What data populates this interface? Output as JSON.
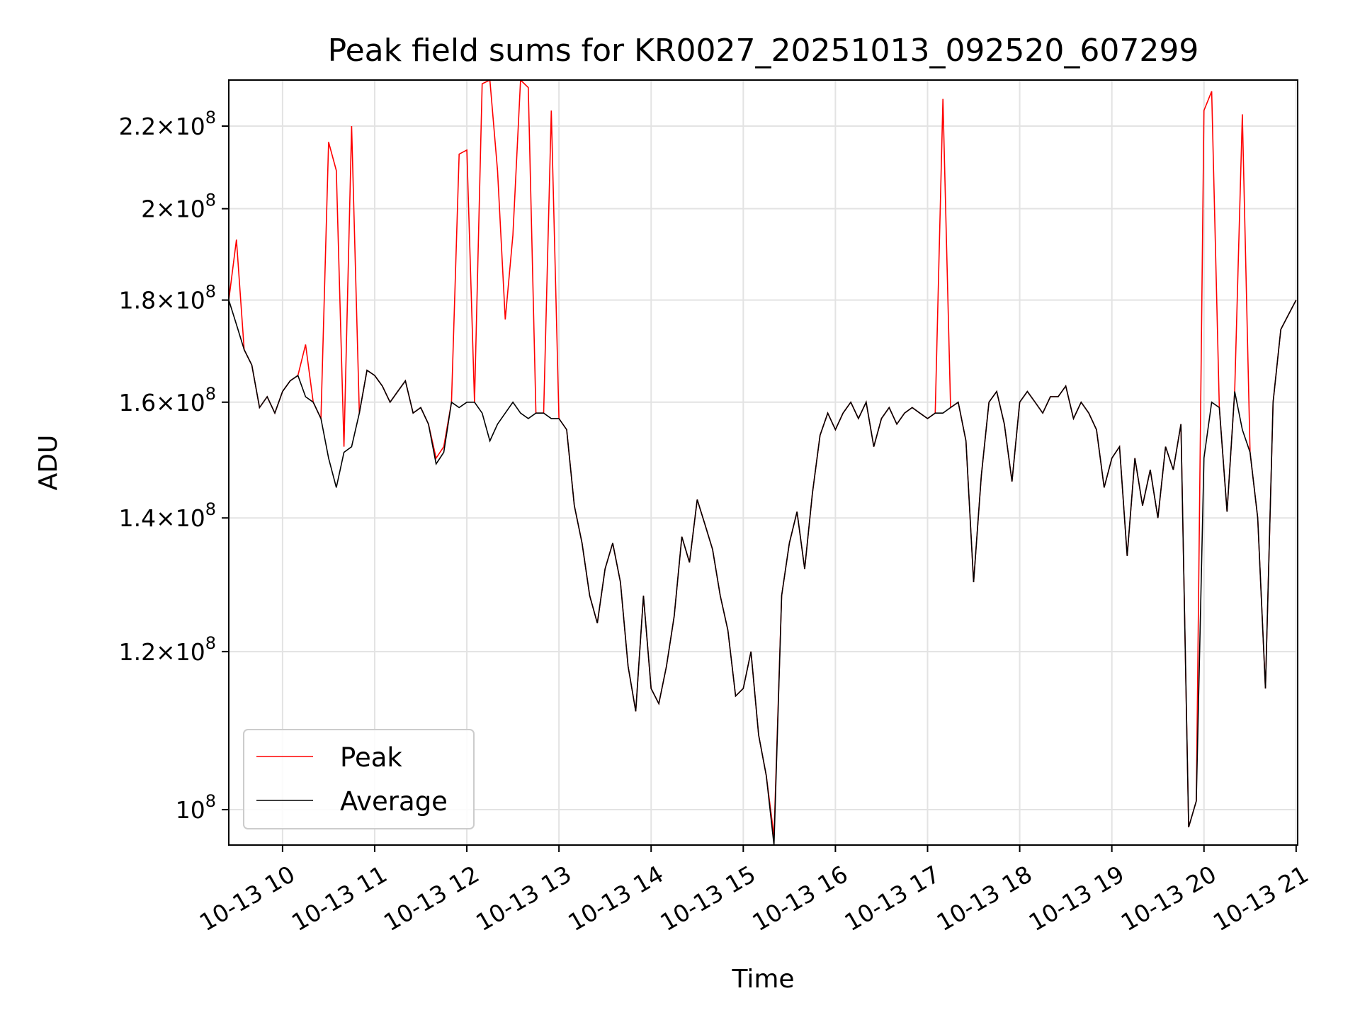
{
  "chart_data": {
    "type": "line",
    "title": "Peak field sums for KR0027_20251013_092520_607299",
    "xlabel": "Time",
    "ylabel": "ADU",
    "yscale": "log",
    "grid": true,
    "legend_position": "lower-left",
    "xlim": [
      "2025-10-13 09:25",
      "2025-10-13 21:01"
    ],
    "ylim": [
      96000000,
      232000000
    ],
    "x_ticks": [
      "10-13 10",
      "10-13 11",
      "10-13 12",
      "10-13 13",
      "10-13 14",
      "10-13 15",
      "10-13 16",
      "10-13 17",
      "10-13 18",
      "10-13 19",
      "10-13 20",
      "10-13 21"
    ],
    "y_ticks": [
      {
        "value": 100000000,
        "mantissa": "",
        "exponent": "8"
      },
      {
        "value": 120000000,
        "mantissa": "1.2",
        "exponent": "8"
      },
      {
        "value": 140000000,
        "mantissa": "1.4",
        "exponent": "8"
      },
      {
        "value": 160000000,
        "mantissa": "1.6",
        "exponent": "8"
      },
      {
        "value": 180000000,
        "mantissa": "1.8",
        "exponent": "8"
      },
      {
        "value": 200000000,
        "mantissa": "2",
        "exponent": "8"
      },
      {
        "value": 220000000,
        "mantissa": "2.2",
        "exponent": "8"
      }
    ],
    "series_colors": {
      "peak": "#ff0000",
      "average": "#000000"
    },
    "series": [
      {
        "name": "Peak",
        "color": "#ff0000",
        "x": [
          "2025-10-13 09:25",
          "2025-10-13 09:30",
          "2025-10-13 09:35",
          "2025-10-13 09:40",
          "2025-10-13 09:45",
          "2025-10-13 09:50",
          "2025-10-13 09:55",
          "2025-10-13 10:00",
          "2025-10-13 10:05",
          "2025-10-13 10:10",
          "2025-10-13 10:15",
          "2025-10-13 10:20",
          "2025-10-13 10:25",
          "2025-10-13 10:30",
          "2025-10-13 10:35",
          "2025-10-13 10:40",
          "2025-10-13 10:45",
          "2025-10-13 10:50",
          "2025-10-13 10:55",
          "2025-10-13 11:00",
          "2025-10-13 11:05",
          "2025-10-13 11:10",
          "2025-10-13 11:15",
          "2025-10-13 11:20",
          "2025-10-13 11:25",
          "2025-10-13 11:30",
          "2025-10-13 11:35",
          "2025-10-13 11:40",
          "2025-10-13 11:45",
          "2025-10-13 11:50",
          "2025-10-13 11:55",
          "2025-10-13 12:00",
          "2025-10-13 12:05",
          "2025-10-13 12:10",
          "2025-10-13 12:15",
          "2025-10-13 12:20",
          "2025-10-13 12:25",
          "2025-10-13 12:30",
          "2025-10-13 12:35",
          "2025-10-13 12:40",
          "2025-10-13 12:45",
          "2025-10-13 12:50",
          "2025-10-13 12:55",
          "2025-10-13 13:00",
          "2025-10-13 13:05",
          "2025-10-13 13:10",
          "2025-10-13 13:15",
          "2025-10-13 13:20",
          "2025-10-13 13:25",
          "2025-10-13 13:30",
          "2025-10-13 13:35",
          "2025-10-13 13:40",
          "2025-10-13 13:45",
          "2025-10-13 13:50",
          "2025-10-13 13:55",
          "2025-10-13 14:00",
          "2025-10-13 14:05",
          "2025-10-13 14:10",
          "2025-10-13 14:15",
          "2025-10-13 14:20",
          "2025-10-13 14:25",
          "2025-10-13 14:30",
          "2025-10-13 14:35",
          "2025-10-13 14:40",
          "2025-10-13 14:45",
          "2025-10-13 14:50",
          "2025-10-13 14:55",
          "2025-10-13 15:00",
          "2025-10-13 15:05",
          "2025-10-13 15:10",
          "2025-10-13 15:15",
          "2025-10-13 15:20",
          "2025-10-13 15:25",
          "2025-10-13 15:30",
          "2025-10-13 15:35",
          "2025-10-13 15:40",
          "2025-10-13 15:45",
          "2025-10-13 15:50",
          "2025-10-13 15:55",
          "2025-10-13 16:00",
          "2025-10-13 16:05",
          "2025-10-13 16:10",
          "2025-10-13 16:15",
          "2025-10-13 16:20",
          "2025-10-13 16:25",
          "2025-10-13 16:30",
          "2025-10-13 16:35",
          "2025-10-13 16:40",
          "2025-10-13 16:45",
          "2025-10-13 16:50",
          "2025-10-13 16:55",
          "2025-10-13 17:00",
          "2025-10-13 17:05",
          "2025-10-13 17:10",
          "2025-10-13 17:15",
          "2025-10-13 17:20",
          "2025-10-13 17:25",
          "2025-10-13 17:30",
          "2025-10-13 17:35",
          "2025-10-13 17:40",
          "2025-10-13 17:45",
          "2025-10-13 17:50",
          "2025-10-13 17:55",
          "2025-10-13 18:00",
          "2025-10-13 18:05",
          "2025-10-13 18:10",
          "2025-10-13 18:15",
          "2025-10-13 18:20",
          "2025-10-13 18:25",
          "2025-10-13 18:30",
          "2025-10-13 18:35",
          "2025-10-13 18:40",
          "2025-10-13 18:45",
          "2025-10-13 18:50",
          "2025-10-13 18:55",
          "2025-10-13 19:00",
          "2025-10-13 19:05",
          "2025-10-13 19:10",
          "2025-10-13 19:15",
          "2025-10-13 19:20",
          "2025-10-13 19:25",
          "2025-10-13 19:30",
          "2025-10-13 19:35",
          "2025-10-13 19:40",
          "2025-10-13 19:45",
          "2025-10-13 19:50",
          "2025-10-13 19:55",
          "2025-10-13 20:00",
          "2025-10-13 20:05",
          "2025-10-13 20:10",
          "2025-10-13 20:15",
          "2025-10-13 20:20",
          "2025-10-13 20:25",
          "2025-10-13 20:30",
          "2025-10-13 20:35",
          "2025-10-13 20:40",
          "2025-10-13 20:45",
          "2025-10-13 20:50",
          "2025-10-13 20:55",
          "2025-10-13 21:00"
        ],
        "y": [
          180000000,
          193000000,
          170000000,
          167000000,
          159000000,
          161000000,
          158000000,
          162000000,
          164000000,
          165000000,
          171000000,
          160000000,
          157000000,
          216000000,
          209000000,
          152000000,
          220000000,
          158000000,
          166000000,
          165000000,
          163000000,
          160000000,
          162000000,
          164000000,
          158000000,
          159000000,
          156000000,
          150000000,
          152000000,
          160000000,
          213000000,
          214000000,
          160000000,
          231000000,
          232000000,
          209000000,
          176000000,
          194000000,
          232000000,
          230000000,
          158000000,
          158000000,
          224000000,
          157000000,
          155000000,
          142000000,
          136000000,
          128000000,
          124000000,
          132000000,
          136000000,
          130000000,
          118000000,
          112000000,
          128000000,
          115000000,
          113000000,
          118000000,
          125000000,
          137000000,
          133000000,
          143000000,
          139000000,
          135000000,
          128000000,
          123000000,
          114000000,
          115000000,
          120000000,
          109000000,
          104000000,
          97000000,
          128000000,
          136000000,
          141000000,
          132000000,
          144000000,
          154000000,
          158000000,
          155000000,
          158000000,
          160000000,
          157000000,
          160000000,
          152000000,
          157000000,
          159000000,
          156000000,
          158000000,
          159000000,
          158000000,
          157000000,
          158000000,
          227000000,
          159000000,
          160000000,
          153000000,
          130000000,
          147000000,
          160000000,
          162000000,
          156000000,
          146000000,
          160000000,
          162000000,
          160000000,
          158000000,
          161000000,
          161000000,
          163000000,
          157000000,
          160000000,
          158000000,
          155000000,
          145000000,
          150000000,
          152000000,
          134000000,
          150000000,
          142000000,
          148000000,
          140000000,
          152000000,
          148000000,
          156000000,
          98000000,
          101000000,
          224000000,
          229000000,
          159000000,
          141000000,
          162000000,
          223000000,
          151000000,
          140000000,
          115000000,
          160000000,
          174000000,
          177000000,
          180000000
        ],
        "note_values_estimated": true
      },
      {
        "name": "Average",
        "color": "#000000",
        "x": [
          "2025-10-13 09:25",
          "2025-10-13 09:30",
          "2025-10-13 09:35",
          "2025-10-13 09:40",
          "2025-10-13 09:45",
          "2025-10-13 09:50",
          "2025-10-13 09:55",
          "2025-10-13 10:00",
          "2025-10-13 10:05",
          "2025-10-13 10:10",
          "2025-10-13 10:15",
          "2025-10-13 10:20",
          "2025-10-13 10:25",
          "2025-10-13 10:30",
          "2025-10-13 10:35",
          "2025-10-13 10:40",
          "2025-10-13 10:45",
          "2025-10-13 10:50",
          "2025-10-13 10:55",
          "2025-10-13 11:00",
          "2025-10-13 11:05",
          "2025-10-13 11:10",
          "2025-10-13 11:15",
          "2025-10-13 11:20",
          "2025-10-13 11:25",
          "2025-10-13 11:30",
          "2025-10-13 11:35",
          "2025-10-13 11:40",
          "2025-10-13 11:45",
          "2025-10-13 11:50",
          "2025-10-13 11:55",
          "2025-10-13 12:00",
          "2025-10-13 12:05",
          "2025-10-13 12:10",
          "2025-10-13 12:15",
          "2025-10-13 12:20",
          "2025-10-13 12:25",
          "2025-10-13 12:30",
          "2025-10-13 12:35",
          "2025-10-13 12:40",
          "2025-10-13 12:45",
          "2025-10-13 12:50",
          "2025-10-13 12:55",
          "2025-10-13 13:00",
          "2025-10-13 13:05",
          "2025-10-13 13:10",
          "2025-10-13 13:15",
          "2025-10-13 13:20",
          "2025-10-13 13:25",
          "2025-10-13 13:30",
          "2025-10-13 13:35",
          "2025-10-13 13:40",
          "2025-10-13 13:45",
          "2025-10-13 13:50",
          "2025-10-13 13:55",
          "2025-10-13 14:00",
          "2025-10-13 14:05",
          "2025-10-13 14:10",
          "2025-10-13 14:15",
          "2025-10-13 14:20",
          "2025-10-13 14:25",
          "2025-10-13 14:30",
          "2025-10-13 14:35",
          "2025-10-13 14:40",
          "2025-10-13 14:45",
          "2025-10-13 14:50",
          "2025-10-13 14:55",
          "2025-10-13 15:00",
          "2025-10-13 15:05",
          "2025-10-13 15:10",
          "2025-10-13 15:15",
          "2025-10-13 15:20",
          "2025-10-13 15:25",
          "2025-10-13 15:30",
          "2025-10-13 15:35",
          "2025-10-13 15:40",
          "2025-10-13 15:45",
          "2025-10-13 15:50",
          "2025-10-13 15:55",
          "2025-10-13 16:00",
          "2025-10-13 16:05",
          "2025-10-13 16:10",
          "2025-10-13 16:15",
          "2025-10-13 16:20",
          "2025-10-13 16:25",
          "2025-10-13 16:30",
          "2025-10-13 16:35",
          "2025-10-13 16:40",
          "2025-10-13 16:45",
          "2025-10-13 16:50",
          "2025-10-13 16:55",
          "2025-10-13 17:00",
          "2025-10-13 17:05",
          "2025-10-13 17:10",
          "2025-10-13 17:15",
          "2025-10-13 17:20",
          "2025-10-13 17:25",
          "2025-10-13 17:30",
          "2025-10-13 17:35",
          "2025-10-13 17:40",
          "2025-10-13 17:45",
          "2025-10-13 17:50",
          "2025-10-13 17:55",
          "2025-10-13 18:00",
          "2025-10-13 18:05",
          "2025-10-13 18:10",
          "2025-10-13 18:15",
          "2025-10-13 18:20",
          "2025-10-13 18:25",
          "2025-10-13 18:30",
          "2025-10-13 18:35",
          "2025-10-13 18:40",
          "2025-10-13 18:45",
          "2025-10-13 18:50",
          "2025-10-13 18:55",
          "2025-10-13 19:00",
          "2025-10-13 19:05",
          "2025-10-13 19:10",
          "2025-10-13 19:15",
          "2025-10-13 19:20",
          "2025-10-13 19:25",
          "2025-10-13 19:30",
          "2025-10-13 19:35",
          "2025-10-13 19:40",
          "2025-10-13 19:45",
          "2025-10-13 19:50",
          "2025-10-13 19:55",
          "2025-10-13 20:00",
          "2025-10-13 20:05",
          "2025-10-13 20:10",
          "2025-10-13 20:15",
          "2025-10-13 20:20",
          "2025-10-13 20:25",
          "2025-10-13 20:30",
          "2025-10-13 20:35",
          "2025-10-13 20:40",
          "2025-10-13 20:45",
          "2025-10-13 20:50",
          "2025-10-13 20:55",
          "2025-10-13 21:00"
        ],
        "y": [
          180000000,
          175000000,
          170000000,
          167000000,
          159000000,
          161000000,
          158000000,
          162000000,
          164000000,
          165000000,
          161000000,
          160000000,
          157000000,
          150000000,
          145000000,
          151000000,
          152000000,
          158000000,
          166000000,
          165000000,
          163000000,
          160000000,
          162000000,
          164000000,
          158000000,
          159000000,
          156000000,
          149000000,
          151000000,
          160000000,
          159000000,
          160000000,
          160000000,
          158000000,
          153000000,
          156000000,
          158000000,
          160000000,
          158000000,
          157000000,
          158000000,
          158000000,
          157000000,
          157000000,
          155000000,
          142000000,
          136000000,
          128000000,
          124000000,
          132000000,
          136000000,
          130000000,
          118000000,
          112000000,
          128000000,
          115000000,
          113000000,
          118000000,
          125000000,
          137000000,
          133000000,
          143000000,
          139000000,
          135000000,
          128000000,
          123000000,
          114000000,
          115000000,
          120000000,
          109000000,
          104000000,
          96000000,
          128000000,
          136000000,
          141000000,
          132000000,
          144000000,
          154000000,
          158000000,
          155000000,
          158000000,
          160000000,
          157000000,
          160000000,
          152000000,
          157000000,
          159000000,
          156000000,
          158000000,
          159000000,
          158000000,
          157000000,
          158000000,
          158000000,
          159000000,
          160000000,
          153000000,
          130000000,
          147000000,
          160000000,
          162000000,
          156000000,
          146000000,
          160000000,
          162000000,
          160000000,
          158000000,
          161000000,
          161000000,
          163000000,
          157000000,
          160000000,
          158000000,
          155000000,
          145000000,
          150000000,
          152000000,
          134000000,
          150000000,
          142000000,
          148000000,
          140000000,
          152000000,
          148000000,
          156000000,
          98000000,
          101000000,
          150000000,
          160000000,
          159000000,
          141000000,
          162000000,
          155000000,
          151000000,
          140000000,
          115000000,
          160000000,
          174000000,
          177000000,
          180000000
        ],
        "note_values_estimated": true
      }
    ]
  }
}
